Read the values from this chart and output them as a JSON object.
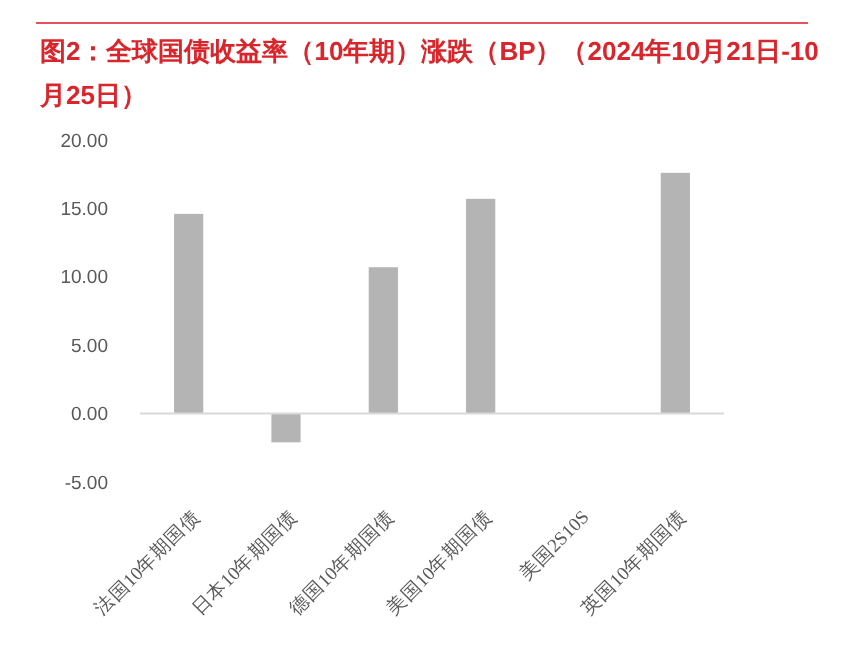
{
  "chart_data": {
    "type": "bar",
    "title": "图2：全球国债收益率（10年期）涨跌（BP）（2024年10月21日-10月25日）",
    "categories": [
      "法国10年期国债",
      "日本10年期国债",
      "德国10年期国债",
      "美国10年期国债",
      "美国2S10S",
      "英国10年期国债"
    ],
    "values": [
      14.6,
      -2.1,
      10.7,
      15.7,
      0,
      17.6
    ],
    "ylim": [
      -5,
      20
    ],
    "yticks": [
      {
        "value": -5,
        "label": "-5.00"
      },
      {
        "value": 0,
        "label": "0.00"
      },
      {
        "value": 5,
        "label": "5.00"
      },
      {
        "value": 10,
        "label": "10.00"
      },
      {
        "value": 15,
        "label": "15.00"
      },
      {
        "value": 20,
        "label": "20.00"
      }
    ],
    "color": "#b4b4b4"
  }
}
